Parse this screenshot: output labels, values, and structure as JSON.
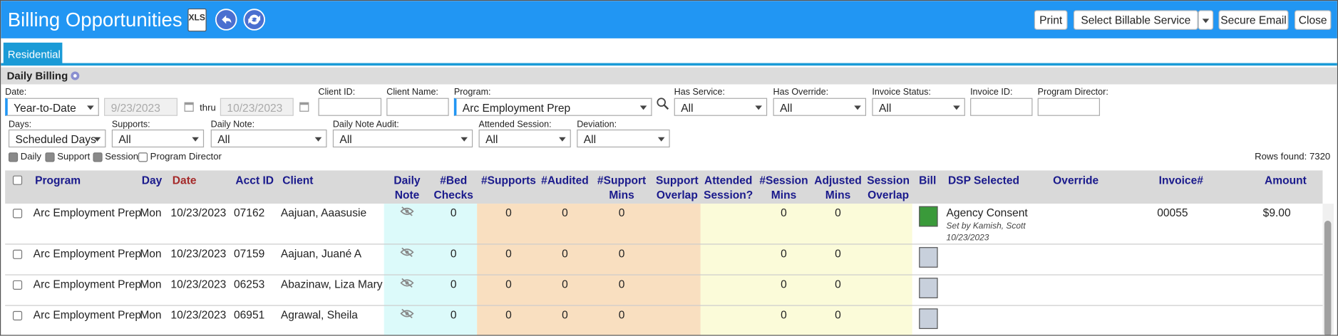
{
  "header": {
    "title": "Billing Opportunities",
    "xls_icon": "XLS",
    "buttons": [
      "Print",
      "Select Billable Service",
      "Secure Email",
      "Close"
    ]
  },
  "tabs": [
    "Residential"
  ],
  "section_title": "Daily Billing",
  "filters": {
    "date": {
      "label": "Date:",
      "value": "Year-to-Date",
      "from": "9/23/2023",
      "thru": "thru",
      "to": "10/23/2023"
    },
    "fields": [
      {
        "label": "Client ID:"
      },
      {
        "label": "Client Name:"
      },
      {
        "label": "Program:",
        "value": "Arc Employment Prep"
      },
      {
        "label": "Has Service:",
        "value": "All"
      },
      {
        "label": "Has Override:",
        "value": "All"
      },
      {
        "label": "Invoice Status:",
        "value": "All"
      },
      {
        "label": "Invoice ID:"
      },
      {
        "label": "Program Director:"
      },
      {
        "label": "Days:",
        "value": "Scheduled Days"
      },
      {
        "label": "Supports:",
        "value": "All"
      },
      {
        "label": "Daily Note:",
        "value": "All"
      },
      {
        "label": "Daily Note Audit:",
        "value": "All"
      },
      {
        "label": "Attended Session:",
        "value": "All"
      },
      {
        "label": "Deviation:",
        "value": "All"
      }
    ],
    "checkboxes": [
      {
        "label": "Daily",
        "checked": true
      },
      {
        "label": "Support",
        "checked": true
      },
      {
        "label": "Session",
        "checked": true
      },
      {
        "label": "Program Director",
        "checked": false
      }
    ]
  },
  "rows_found": "Rows found: 7320",
  "table": {
    "columns": [
      "Program",
      "Day",
      "Date",
      "Acct ID",
      "Client",
      "Daily Note",
      "#Bed Checks",
      "#Supports",
      "#Audited",
      "#Support Mins",
      "Support Overlap",
      "Attended Session?",
      "#Session Mins",
      "Adjusted Mins",
      "Session Overlap",
      "Bill",
      "DSP Selected",
      "Override",
      "Invoice#",
      "Amount"
    ],
    "rows": [
      {
        "program": "Arc Employment Prep",
        "day": "Mon",
        "date": "10/23/2023",
        "acct_id": "07162",
        "client": "Aajuan, Aaasusie",
        "bed_checks": 0,
        "supports": 0,
        "audited": 0,
        "support_mins": 0,
        "session_mins": 0,
        "adjusted_mins": 0,
        "billed": true,
        "dsp_selected": "Agency Consent",
        "dsp_note": "Set by Kamish, Scott",
        "dsp_date": "10/23/2023",
        "invoice": "00055",
        "amount": "$9.00"
      },
      {
        "program": "Arc Employment Prep",
        "day": "Mon",
        "date": "10/23/2023",
        "acct_id": "07159",
        "client": "Aajuan, Juané A",
        "bed_checks": 0,
        "supports": 0,
        "audited": 0,
        "support_mins": 0,
        "session_mins": 0,
        "adjusted_mins": 0,
        "billed": false
      },
      {
        "program": "Arc Employment Prep",
        "day": "Mon",
        "date": "10/23/2023",
        "acct_id": "06253",
        "client": "Abazinaw, Liza Mary",
        "bed_checks": 0,
        "supports": 0,
        "audited": 0,
        "support_mins": 0,
        "session_mins": 0,
        "adjusted_mins": 0,
        "billed": false
      },
      {
        "program": "Arc Employment Prep",
        "day": "Mon",
        "date": "10/23/2023",
        "acct_id": "06951",
        "client": "Agrawal, Sheila",
        "bed_checks": 0,
        "supports": 0,
        "audited": 0,
        "support_mins": 0,
        "session_mins": 0,
        "adjusted_mins": 0,
        "billed": false
      }
    ]
  }
}
